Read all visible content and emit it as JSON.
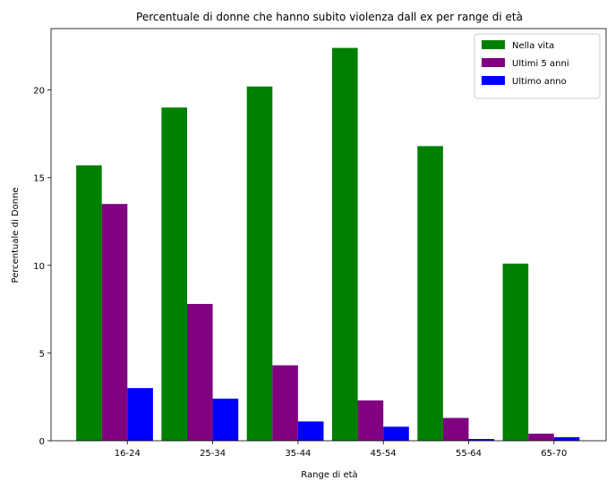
{
  "chart_data": {
    "type": "bar",
    "title": "Percentuale di donne che hanno subito violenza dall ex per range di età",
    "xlabel": "Range di età",
    "ylabel": "Percentuale di Donne",
    "categories": [
      "16-24",
      "25-34",
      "35-44",
      "45-54",
      "55-64",
      "65-70"
    ],
    "ylim": [
      0,
      23.5
    ],
    "yticks": [
      0,
      5,
      10,
      15,
      20
    ],
    "grid": false,
    "legend_position": "top-right",
    "series": [
      {
        "name": "Nella vita",
        "color": "#008000",
        "values": [
          15.7,
          19.0,
          20.2,
          22.4,
          16.8,
          10.1
        ]
      },
      {
        "name": "Ultimi 5 anni",
        "color": "#800080",
        "values": [
          13.5,
          7.8,
          4.3,
          2.3,
          1.3,
          0.4
        ]
      },
      {
        "name": "Ultimo anno",
        "color": "#0000ff",
        "values": [
          3.0,
          2.4,
          1.1,
          0.8,
          0.1,
          0.2
        ]
      }
    ]
  }
}
